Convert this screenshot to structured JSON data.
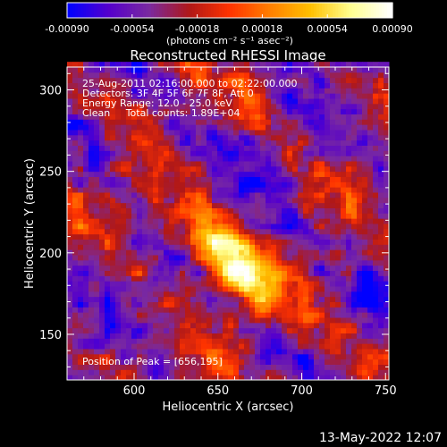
{
  "colorbar": {
    "tick_labels": [
      "-0.00090",
      "-0.00054",
      "-0.00018",
      "0.00018",
      "0.00054",
      "0.00090"
    ],
    "tick_values": [
      -0.0009,
      -0.00054,
      -0.00018,
      0.00018,
      0.00054,
      0.0009
    ],
    "range": [
      -0.0009,
      0.0009
    ],
    "unit_label": "(photons cm⁻² s⁻¹ asec⁻²)",
    "colormap": [
      "#0000ff",
      "#5500cc",
      "#7a2aa0",
      "#b01818",
      "#ff3300",
      "#ff7f00",
      "#ffc000",
      "#ffff90",
      "#ffffff"
    ]
  },
  "title": "Reconstructed RHESSI Image",
  "annotations": {
    "line1": "25-Aug-2011 02:16:00.000 to 02:22:00.000",
    "line2": "Detectors: 3F 4F 5F 6F 7F 8F, Att 0",
    "line3": "Energy Range: 12.0 - 25.0 keV",
    "line4": "Clean     Total counts: 1.89E+04",
    "peak": "Position of Peak = [656,195]"
  },
  "footer": {
    "timestamp": "13-May-2022 12:07"
  },
  "chart_data": {
    "type": "heatmap",
    "title": "Reconstructed RHESSI Image",
    "xlabel": "Heliocentric X (arcsec)",
    "ylabel": "Heliocentric Y (arcsec)",
    "xlim": [
      560,
      752
    ],
    "ylim": [
      122,
      314
    ],
    "x_ticks": [
      600,
      650,
      700,
      750
    ],
    "x_tick_labels": [
      "600",
      "650",
      "700",
      "750"
    ],
    "y_ticks": [
      150,
      200,
      250,
      300
    ],
    "y_tick_labels": [
      "150",
      "200",
      "250",
      "300"
    ],
    "peak_position": [
      656,
      195
    ],
    "value_range": [
      -0.0009,
      0.0009
    ],
    "grid": false
  }
}
